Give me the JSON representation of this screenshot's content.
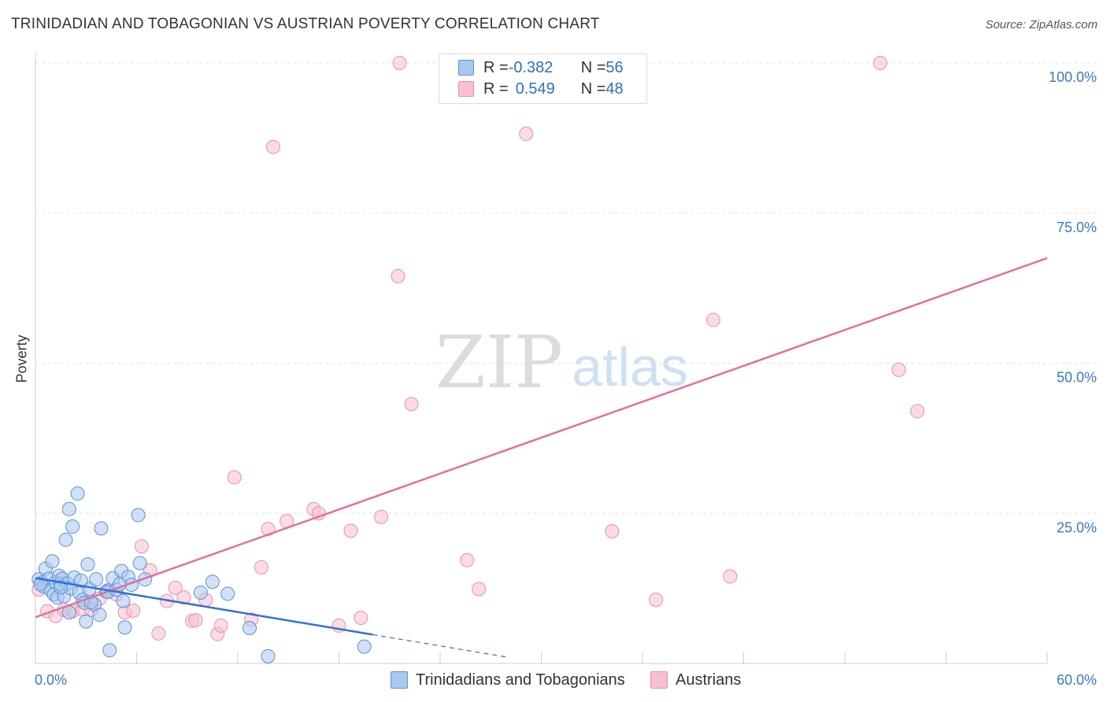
{
  "title": "TRINIDADIAN AND TOBAGONIAN VS AUSTRIAN POVERTY CORRELATION CHART",
  "source": "Source: ZipAtlas.com",
  "watermark": {
    "part1": "ZIP",
    "part2": "atlas"
  },
  "legend": {
    "series1": {
      "r_label": "R = ",
      "r_value": "-0.382",
      "n_label": "N = ",
      "n_value": "56"
    },
    "series2": {
      "r_label": "R = ",
      "r_value": "0.549",
      "n_label": "N = ",
      "n_value": "48"
    }
  },
  "bottom_legend": {
    "series1": "Trinidadians and Tobagonians",
    "series2": "Austrians"
  },
  "chart_data": {
    "type": "scatter",
    "title": "TRINIDADIAN AND TOBAGONIAN VS AUSTRIAN POVERTY CORRELATION CHART",
    "xlabel": "",
    "ylabel": "Poverty",
    "xlim": [
      0,
      60
    ],
    "ylim": [
      0,
      100
    ],
    "x_tick_labels": {
      "min": "0.0%",
      "max": "60.0%"
    },
    "y_ticks": [
      {
        "value": 25,
        "label": "25.0%"
      },
      {
        "value": 50,
        "label": "50.0%"
      },
      {
        "value": 75,
        "label": "75.0%"
      },
      {
        "value": 100,
        "label": "100.0%"
      }
    ],
    "grid": true,
    "legend_position": "top-center",
    "colors": {
      "series1_fill": "#a9c8ef",
      "series1_stroke": "#5b90d8",
      "series1_line": "#2f73d0",
      "series2_fill": "#f7bfd0",
      "series2_stroke": "#e88fad",
      "series2_line": "#e2709a"
    },
    "series": [
      {
        "name": "Trinidadians and Tobagonians",
        "r": -0.382,
        "n": 56,
        "trend": {
          "x0": 0,
          "y0": 14.2,
          "x1": 20,
          "y1": 4.8,
          "dash_to_x": 28
        },
        "points": [
          [
            0.2,
            14
          ],
          [
            0.4,
            13.5
          ],
          [
            0.5,
            12.8
          ],
          [
            0.6,
            15.8
          ],
          [
            0.8,
            14.1
          ],
          [
            0.9,
            12.2
          ],
          [
            1.0,
            17
          ],
          [
            1.1,
            11.5
          ],
          [
            1.2,
            13.5
          ],
          [
            1.3,
            11.0
          ],
          [
            1.4,
            14.6
          ],
          [
            1.5,
            13.2
          ],
          [
            1.6,
            14.1
          ],
          [
            1.7,
            11.2
          ],
          [
            1.8,
            20.6
          ],
          [
            1.9,
            13.3
          ],
          [
            2.0,
            25.7
          ],
          [
            2.1,
            12.5
          ],
          [
            2.2,
            22.8
          ],
          [
            2.3,
            14.3
          ],
          [
            2.5,
            28.3
          ],
          [
            2.6,
            11.8
          ],
          [
            2.8,
            10.6
          ],
          [
            2.9,
            10.1
          ],
          [
            3.0,
            7.0
          ],
          [
            3.1,
            16.5
          ],
          [
            3.2,
            12.4
          ],
          [
            3.5,
            9.8
          ],
          [
            3.6,
            14
          ],
          [
            3.8,
            8.1
          ],
          [
            3.9,
            22.5
          ],
          [
            4.2,
            12
          ],
          [
            4.3,
            11.9
          ],
          [
            4.6,
            14.2
          ],
          [
            4.8,
            12.3
          ],
          [
            5.1,
            15.4
          ],
          [
            5.2,
            10.4
          ],
          [
            5.3,
            6.0
          ],
          [
            5.5,
            14.4
          ],
          [
            5.7,
            13.1
          ],
          [
            6.1,
            24.7
          ],
          [
            6.2,
            16.7
          ],
          [
            6.5,
            14
          ],
          [
            3.3,
            10.2
          ],
          [
            4.4,
            2.2
          ],
          [
            9.8,
            11.8
          ],
          [
            10.5,
            13.6
          ],
          [
            11.4,
            11.6
          ],
          [
            12.7,
            5.9
          ],
          [
            13.8,
            1.2
          ],
          [
            19.5,
            2.8
          ],
          [
            2.0,
            8.5
          ],
          [
            1.5,
            12.7
          ],
          [
            0.3,
            13.2
          ],
          [
            2.7,
            13.8
          ],
          [
            5.0,
            13.2
          ]
        ]
      },
      {
        "name": "Austrians",
        "r": 0.549,
        "n": 48,
        "trend": {
          "x0": 0,
          "y0": 7.7,
          "x1": 60,
          "y1": 67.5
        },
        "points": [
          [
            0.2,
            12.3
          ],
          [
            0.7,
            8.7
          ],
          [
            1.2,
            7.9
          ],
          [
            1.7,
            8.9
          ],
          [
            2.2,
            8.7
          ],
          [
            2.8,
            9.0
          ],
          [
            3.3,
            8.9
          ],
          [
            3.8,
            10.8
          ],
          [
            4.3,
            12.2
          ],
          [
            4.8,
            11.5
          ],
          [
            5.3,
            8.5
          ],
          [
            5.8,
            8.8
          ],
          [
            6.3,
            19.5
          ],
          [
            6.8,
            15.5
          ],
          [
            7.3,
            5.0
          ],
          [
            7.8,
            10.4
          ],
          [
            8.3,
            12.6
          ],
          [
            8.8,
            11.0
          ],
          [
            9.3,
            7.1
          ],
          [
            9.5,
            7.2
          ],
          [
            10.1,
            10.6
          ],
          [
            10.8,
            4.9
          ],
          [
            11.0,
            6.3
          ],
          [
            11.8,
            31
          ],
          [
            12.8,
            7.3
          ],
          [
            13.4,
            16
          ],
          [
            13.8,
            22.4
          ],
          [
            14.1,
            86
          ],
          [
            14.9,
            23.7
          ],
          [
            16.5,
            25.7
          ],
          [
            16.8,
            25
          ],
          [
            18.0,
            6.3
          ],
          [
            18.7,
            22.1
          ],
          [
            19.3,
            7.6
          ],
          [
            20.5,
            24.4
          ],
          [
            21.5,
            64.5
          ],
          [
            21.6,
            100
          ],
          [
            22.3,
            43.2
          ],
          [
            25.6,
            17.2
          ],
          [
            26.3,
            12.4
          ],
          [
            29.1,
            88.2
          ],
          [
            34.2,
            22
          ],
          [
            36.8,
            10.6
          ],
          [
            40.2,
            57.2
          ],
          [
            41.2,
            14.5
          ],
          [
            50.1,
            100
          ],
          [
            51.2,
            48.9
          ],
          [
            52.3,
            42
          ]
        ]
      }
    ]
  }
}
